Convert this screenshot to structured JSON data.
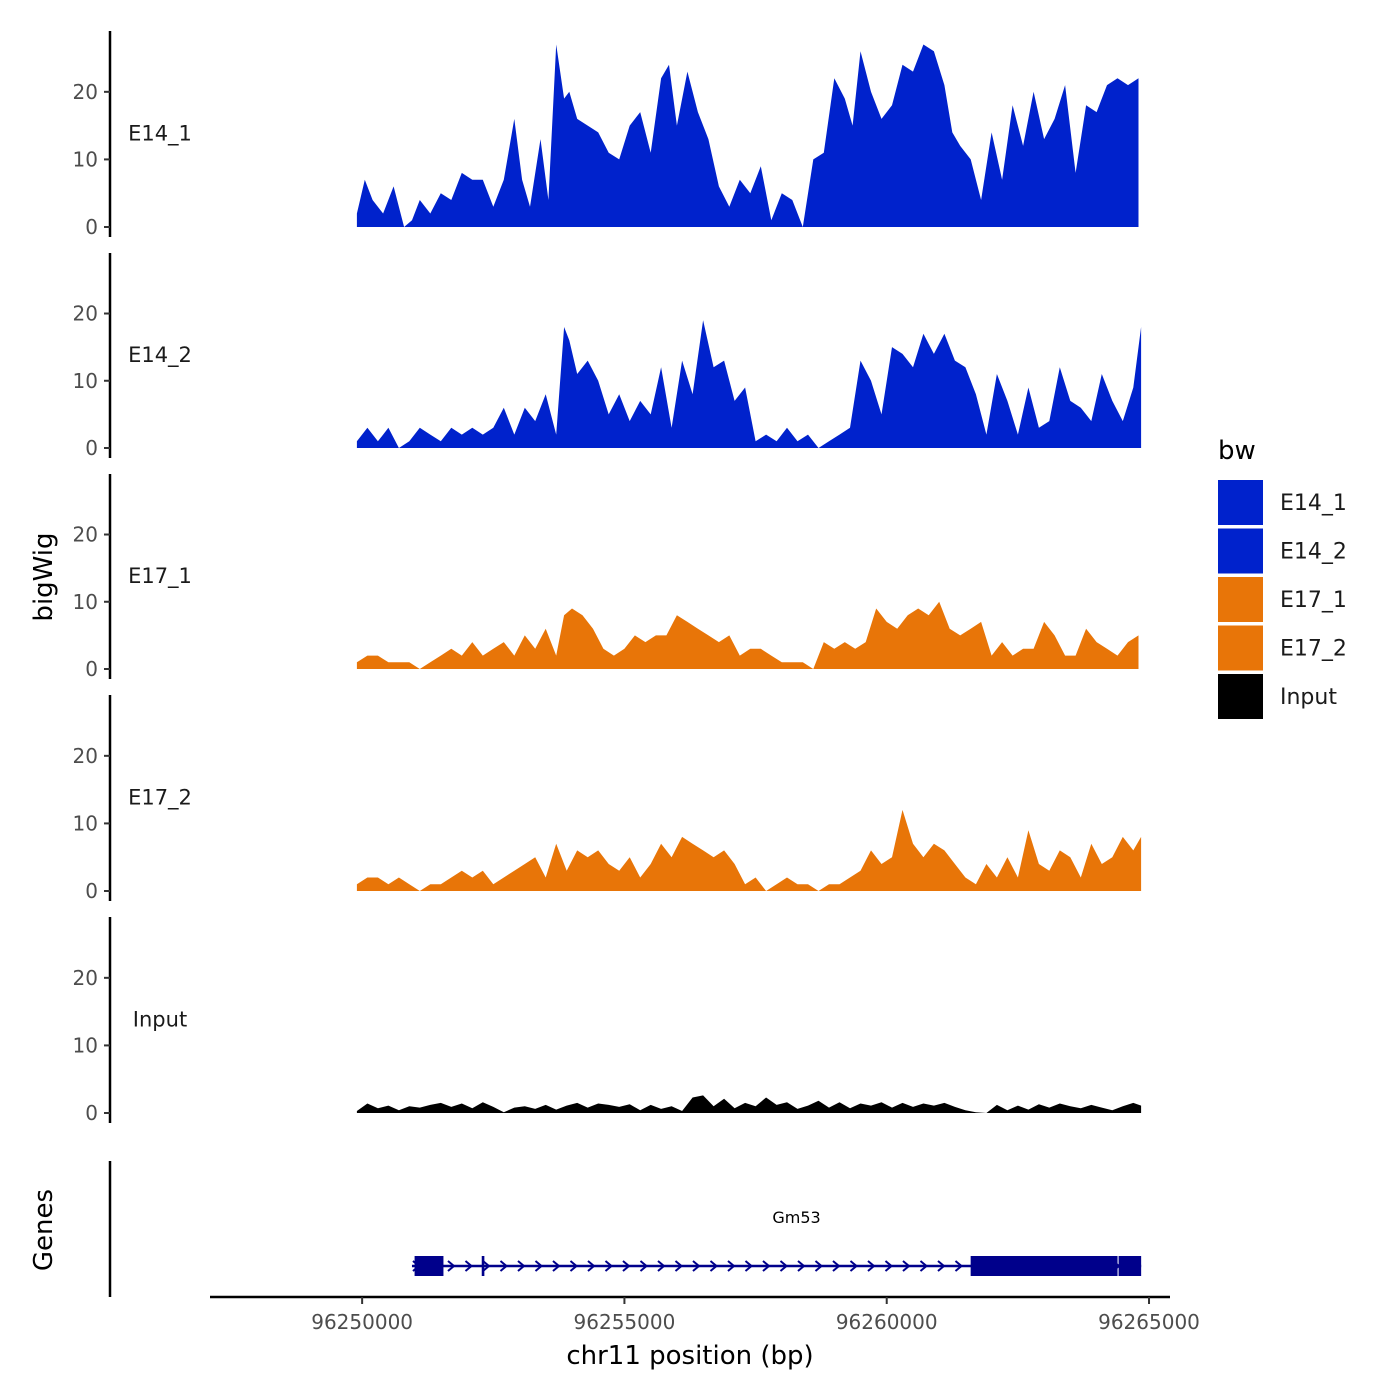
{
  "chart_data": {
    "type": "area",
    "chromosome": "chr11",
    "xlabel": "chr11 position (bp)",
    "ylabel": "bigWig",
    "genes_label": "Genes",
    "xlim": [
      96247100,
      96265400
    ],
    "ylim": [
      0,
      29
    ],
    "x_ticks": [
      96250000,
      96255000,
      96260000,
      96265000
    ],
    "x_tick_labels": [
      "96250000",
      "96255000",
      "96260000",
      "96265000"
    ],
    "y_ticks": [
      0,
      10,
      20
    ],
    "y_tick_labels": [
      "0",
      "10",
      "20"
    ],
    "legend": {
      "title": "bw",
      "position": "right",
      "entries": [
        {
          "label": "E14_1",
          "color": "#0022CC"
        },
        {
          "label": "E14_2",
          "color": "#0022CC"
        },
        {
          "label": "E17_1",
          "color": "#E87508"
        },
        {
          "label": "E17_2",
          "color": "#E87508"
        },
        {
          "label": "Input",
          "color": "#000000"
        }
      ]
    },
    "series": [
      {
        "name": "E14_1",
        "color": "#0022CC",
        "x": [
          96249900,
          96250050,
          96250200,
          96250400,
          96250600,
          96250800,
          96250950,
          96251100,
          96251300,
          96251500,
          96251700,
          96251900,
          96252100,
          96252300,
          96252500,
          96252700,
          96252900,
          96253050,
          96253200,
          96253400,
          96253550,
          96253700,
          96253850,
          96253950,
          96254100,
          96254300,
          96254500,
          96254700,
          96254900,
          96255100,
          96255300,
          96255500,
          96255700,
          96255850,
          96256000,
          96256200,
          96256400,
          96256600,
          96256800,
          96257000,
          96257200,
          96257400,
          96257600,
          96257800,
          96258000,
          96258200,
          96258400,
          96258600,
          96258800,
          96259000,
          96259200,
          96259350,
          96259500,
          96259700,
          96259900,
          96260100,
          96260300,
          96260500,
          96260700,
          96260900,
          96261100,
          96261250,
          96261400,
          96261600,
          96261800,
          96262000,
          96262200,
          96262400,
          96262600,
          96262800,
          96263000,
          96263200,
          96263400,
          96263600,
          96263800,
          96264000,
          96264200,
          96264400,
          96264600,
          96264800
        ],
        "values": [
          2,
          7,
          4,
          2,
          6,
          0,
          1,
          4,
          2,
          5,
          4,
          8,
          7,
          7,
          3,
          7,
          16,
          7,
          3,
          13,
          4,
          27,
          19,
          20,
          16,
          15,
          14,
          11,
          10,
          15,
          17,
          11,
          22,
          24,
          15,
          23,
          17,
          13,
          6,
          3,
          7,
          5,
          9,
          1,
          5,
          4,
          0,
          10,
          11,
          22,
          19,
          15,
          26,
          20,
          16,
          18,
          24,
          23,
          27,
          26,
          21,
          14,
          12,
          10,
          4,
          14,
          7,
          18,
          12,
          20,
          13,
          16,
          21,
          8,
          18,
          17,
          21,
          22,
          21,
          22
        ]
      },
      {
        "name": "E14_2",
        "color": "#0022CC",
        "x": [
          96249900,
          96250100,
          96250300,
          96250500,
          96250700,
          96250900,
          96251100,
          96251300,
          96251500,
          96251700,
          96251900,
          96252100,
          96252300,
          96252500,
          96252700,
          96252900,
          96253100,
          96253300,
          96253500,
          96253700,
          96253850,
          96253950,
          96254100,
          96254300,
          96254500,
          96254700,
          96254900,
          96255100,
          96255300,
          96255500,
          96255700,
          96255900,
          96256100,
          96256300,
          96256500,
          96256700,
          96256900,
          96257100,
          96257300,
          96257500,
          96257700,
          96257900,
          96258100,
          96258300,
          96258500,
          96258700,
          96258900,
          96259100,
          96259300,
          96259500,
          96259700,
          96259900,
          96260100,
          96260300,
          96260500,
          96260700,
          96260900,
          96261100,
          96261300,
          96261500,
          96261700,
          96261900,
          96262100,
          96262300,
          96262500,
          96262700,
          96262900,
          96263100,
          96263300,
          96263500,
          96263700,
          96263900,
          96264100,
          96264300,
          96264500,
          96264700,
          96264850
        ],
        "values": [
          1,
          3,
          1,
          3,
          0,
          1,
          3,
          2,
          1,
          3,
          2,
          3,
          2,
          3,
          6,
          2,
          6,
          4,
          8,
          2,
          18,
          16,
          11,
          13,
          10,
          5,
          8,
          4,
          7,
          5,
          12,
          3,
          13,
          8,
          19,
          12,
          13,
          7,
          9,
          1,
          2,
          1,
          3,
          1,
          2,
          0,
          1,
          2,
          3,
          13,
          10,
          5,
          15,
          14,
          12,
          17,
          14,
          17,
          13,
          12,
          8,
          2,
          11,
          7,
          2,
          9,
          3,
          4,
          12,
          7,
          6,
          4,
          11,
          7,
          4,
          9,
          18
        ]
      },
      {
        "name": "E17_1",
        "color": "#E87508",
        "x": [
          96249900,
          96250100,
          96250300,
          96250500,
          96250700,
          96250900,
          96251100,
          96251300,
          96251500,
          96251700,
          96251900,
          96252100,
          96252300,
          96252500,
          96252700,
          96252900,
          96253100,
          96253300,
          96253500,
          96253700,
          96253850,
          96254000,
          96254200,
          96254400,
          96254600,
          96254800,
          96255000,
          96255200,
          96255400,
          96255600,
          96255800,
          96256000,
          96256200,
          96256400,
          96256600,
          96256800,
          96257000,
          96257200,
          96257400,
          96257600,
          96257800,
          96258000,
          96258200,
          96258400,
          96258600,
          96258800,
          96259000,
          96259200,
          96259400,
          96259600,
          96259800,
          96260000,
          96260200,
          96260400,
          96260600,
          96260800,
          96261000,
          96261200,
          96261400,
          96261600,
          96261800,
          96262000,
          96262200,
          96262400,
          96262600,
          96262800,
          96263000,
          96263200,
          96263400,
          96263600,
          96263800,
          96264000,
          96264200,
          96264400,
          96264600,
          96264800
        ],
        "values": [
          1,
          2,
          2,
          1,
          1,
          1,
          0,
          1,
          2,
          3,
          2,
          4,
          2,
          3,
          4,
          2,
          5,
          3,
          6,
          2,
          8,
          9,
          8,
          6,
          3,
          2,
          3,
          5,
          4,
          5,
          5,
          8,
          7,
          6,
          5,
          4,
          5,
          2,
          3,
          3,
          2,
          1,
          1,
          1,
          0,
          4,
          3,
          4,
          3,
          4,
          9,
          7,
          6,
          8,
          9,
          8,
          10,
          6,
          5,
          6,
          7,
          2,
          4,
          2,
          3,
          3,
          7,
          5,
          2,
          2,
          6,
          4,
          3,
          2,
          4,
          5
        ]
      },
      {
        "name": "E17_2",
        "color": "#E87508",
        "x": [
          96249900,
          96250100,
          96250300,
          96250500,
          96250700,
          96250900,
          96251100,
          96251300,
          96251500,
          96251700,
          96251900,
          96252100,
          96252300,
          96252500,
          96252700,
          96252900,
          96253100,
          96253300,
          96253500,
          96253700,
          96253900,
          96254100,
          96254300,
          96254500,
          96254700,
          96254900,
          96255100,
          96255300,
          96255500,
          96255700,
          96255900,
          96256100,
          96256300,
          96256500,
          96256700,
          96256900,
          96257100,
          96257300,
          96257500,
          96257700,
          96257900,
          96258100,
          96258300,
          96258500,
          96258700,
          96258900,
          96259100,
          96259300,
          96259500,
          96259700,
          96259900,
          96260100,
          96260300,
          96260500,
          96260700,
          96260900,
          96261100,
          96261300,
          96261500,
          96261700,
          96261900,
          96262100,
          96262300,
          96262500,
          96262700,
          96262900,
          96263100,
          96263300,
          96263500,
          96263700,
          96263900,
          96264100,
          96264300,
          96264500,
          96264700,
          96264850
        ],
        "values": [
          1,
          2,
          2,
          1,
          2,
          1,
          0,
          1,
          1,
          2,
          3,
          2,
          3,
          1,
          2,
          3,
          4,
          5,
          2,
          7,
          3,
          6,
          5,
          6,
          4,
          3,
          5,
          2,
          4,
          7,
          5,
          8,
          7,
          6,
          5,
          6,
          4,
          1,
          2,
          0,
          1,
          2,
          1,
          1,
          0,
          1,
          1,
          2,
          3,
          6,
          4,
          5,
          12,
          7,
          5,
          7,
          6,
          4,
          2,
          1,
          4,
          2,
          5,
          2,
          9,
          4,
          3,
          6,
          5,
          2,
          7,
          4,
          5,
          8,
          6,
          8
        ]
      },
      {
        "name": "Input",
        "color": "#000000",
        "x": [
          96249900,
          96250100,
          96250300,
          96250500,
          96250700,
          96250900,
          96251100,
          96251300,
          96251500,
          96251700,
          96251900,
          96252100,
          96252300,
          96252500,
          96252700,
          96252900,
          96253100,
          96253300,
          96253500,
          96253700,
          96253900,
          96254100,
          96254300,
          96254500,
          96254700,
          96254900,
          96255100,
          96255300,
          96255500,
          96255700,
          96255900,
          96256100,
          96256300,
          96256500,
          96256700,
          96256900,
          96257100,
          96257300,
          96257500,
          96257700,
          96257900,
          96258100,
          96258300,
          96258500,
          96258700,
          96258900,
          96259100,
          96259300,
          96259500,
          96259700,
          96259900,
          96260100,
          96260300,
          96260500,
          96260700,
          96260900,
          96261100,
          96261300,
          96261500,
          96261700,
          96261900,
          96262100,
          96262300,
          96262500,
          96262700,
          96262900,
          96263100,
          96263300,
          96263500,
          96263700,
          96263900,
          96264100,
          96264300,
          96264500,
          96264700,
          96264850
        ],
        "values": [
          0.3,
          1.4,
          0.7,
          1.1,
          0.4,
          1.0,
          0.8,
          1.2,
          1.5,
          0.9,
          1.4,
          0.7,
          1.6,
          0.9,
          0.1,
          0.8,
          1.0,
          0.6,
          1.2,
          0.5,
          1.1,
          1.5,
          0.8,
          1.4,
          1.2,
          0.9,
          1.3,
          0.4,
          1.2,
          0.6,
          1.0,
          0.3,
          2.3,
          2.6,
          1.0,
          2.1,
          0.7,
          1.5,
          1.0,
          2.3,
          1.2,
          1.6,
          0.6,
          1.1,
          1.8,
          0.8,
          1.6,
          0.7,
          1.4,
          1.1,
          1.6,
          0.8,
          1.5,
          0.9,
          1.4,
          1.1,
          1.5,
          0.9,
          0.4,
          0.1,
          0.0,
          1.2,
          0.4,
          1.1,
          0.5,
          1.3,
          0.8,
          1.4,
          1.0,
          0.7,
          1.2,
          0.8,
          0.4,
          1.0,
          1.5,
          1.1
        ]
      }
    ],
    "genes": [
      {
        "name": "Gm53",
        "color": "#00008B",
        "strand": "+",
        "start": 96250950,
        "end": 96264850,
        "exons": [
          [
            96251000,
            96251550
          ],
          [
            96252280,
            96252330
          ],
          [
            96261600,
            96264400
          ],
          [
            96264420,
            96264850
          ]
        ]
      }
    ]
  }
}
